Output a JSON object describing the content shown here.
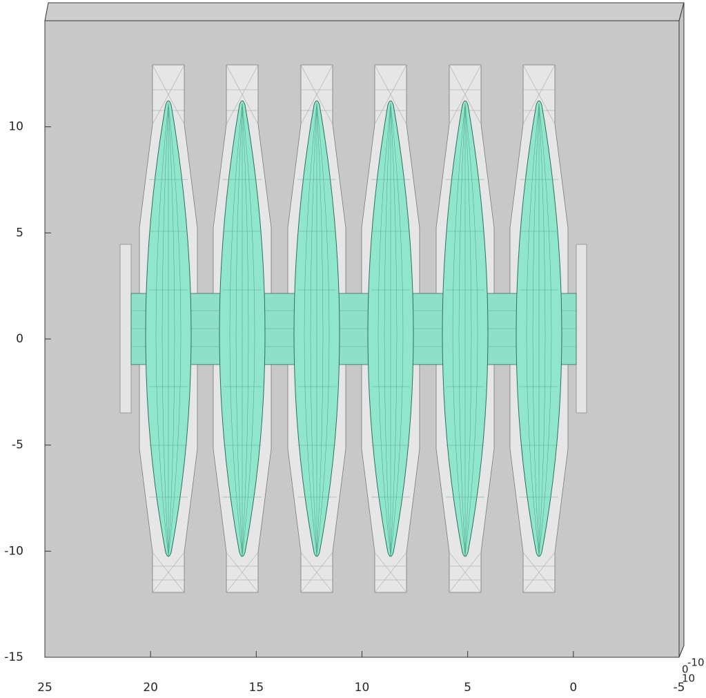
{
  "chart_data": {
    "type": "mesh3d",
    "xlim": [
      25,
      -5
    ],
    "xticks": [
      25,
      20,
      15,
      10,
      5,
      0,
      -5
    ],
    "ylim": [
      -15,
      15
    ],
    "yticks": [
      -15,
      -10,
      -5,
      0,
      5,
      10
    ],
    "zticks": [
      -10,
      0,
      10
    ]
  }
}
